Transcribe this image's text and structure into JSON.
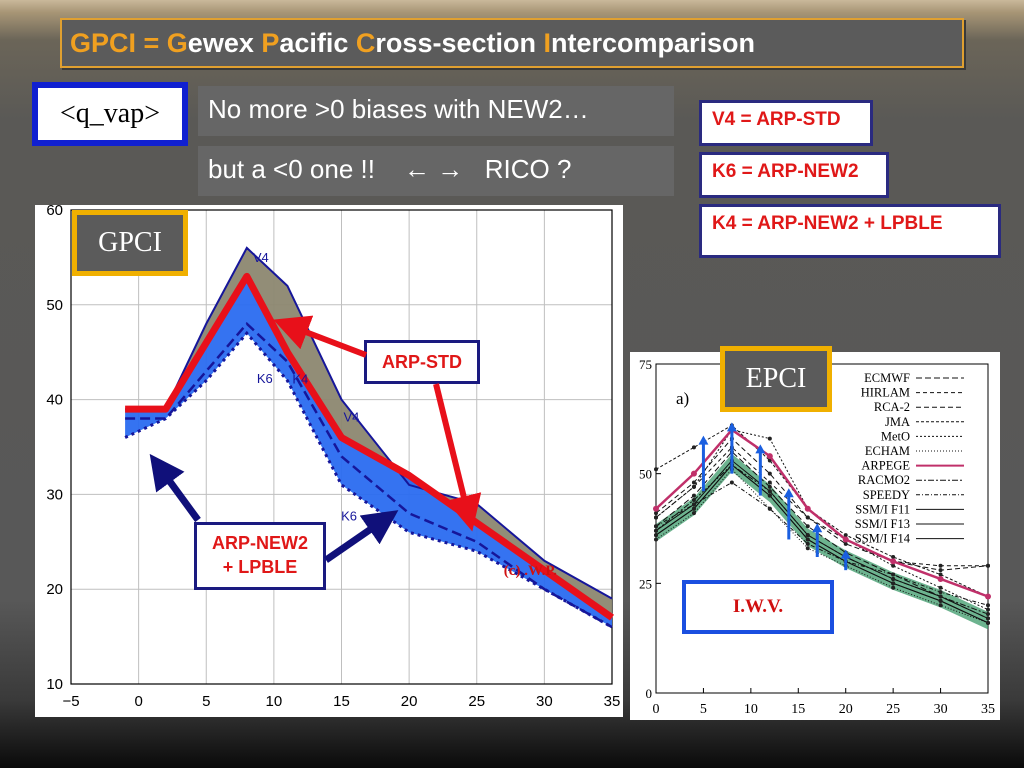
{
  "title": {
    "parts": [
      {
        "text": "GPCI = ",
        "hl": true
      },
      {
        "text": "G",
        "hl": true
      },
      {
        "text": "ewex ",
        "hl": false
      },
      {
        "text": "P",
        "hl": true
      },
      {
        "text": "acific ",
        "hl": false
      },
      {
        "text": "C",
        "hl": true
      },
      {
        "text": "ross-section ",
        "hl": false
      },
      {
        "text": "I",
        "hl": true
      },
      {
        "text": "ntercomparison",
        "hl": false
      }
    ]
  },
  "variable_label": "<q_vap>",
  "notes": {
    "line1": "No more  >0 biases with NEW2…",
    "line2_prefix": "but  a <0 one !!",
    "line2_arrows": "← →",
    "line2_suffix": "RICO ?"
  },
  "legend": {
    "v4": "V4 = ARP-STD",
    "k6": "K6 = ARP-NEW2",
    "k4": "K4 = ARP-NEW2 + LPBLE"
  },
  "gpci_plot": {
    "tag": "GPCI",
    "callout_std": "ARP-STD",
    "callout_new2_line1": "ARP-NEW2",
    "callout_new2_line2": "+ LPBLE",
    "region_label": "(c) .W.P.",
    "colors": {
      "std": "#e8101a",
      "new2": "#2a6cf0",
      "obs_fill": "#8c8770",
      "frame_line": "#16169a"
    }
  },
  "epci_plot": {
    "tag": "EPCI",
    "panel_label": "a)",
    "box_label": "I.W.V."
  },
  "chart_data": [
    {
      "type": "line",
      "title": "GPCI",
      "xlabel": "",
      "ylabel": "",
      "xlim": [
        -5,
        35
      ],
      "ylim": [
        10,
        60
      ],
      "xticks": [
        -5,
        0,
        5,
        10,
        15,
        20,
        25,
        30,
        35
      ],
      "yticks": [
        10,
        20,
        30,
        40,
        50,
        60
      ],
      "grid": true,
      "series": [
        {
          "name": "V4",
          "x": [
            -1,
            2,
            5,
            8,
            11,
            15,
            20,
            25,
            30,
            35
          ],
          "y": [
            39,
            39,
            48,
            56,
            52,
            40,
            31,
            29,
            23,
            19
          ]
        },
        {
          "name": "ARP-STD",
          "x": [
            -1,
            2,
            5,
            8,
            11,
            15,
            20,
            25,
            30,
            35
          ],
          "y": [
            39,
            39,
            46,
            53,
            45,
            36,
            32,
            27,
            22,
            17
          ]
        },
        {
          "name": "K6",
          "x": [
            -1,
            2,
            5,
            8,
            11,
            15,
            20,
            25,
            30,
            35
          ],
          "y": [
            36,
            38,
            42,
            47,
            42,
            31,
            26,
            24,
            20,
            16
          ]
        },
        {
          "name": "K4",
          "x": [
            -1,
            2,
            5,
            8,
            11,
            15,
            20,
            25,
            30,
            35
          ],
          "y": [
            38,
            38,
            43,
            48,
            44,
            34,
            28,
            25,
            20,
            16
          ]
        }
      ]
    },
    {
      "type": "line",
      "title": "EPCI",
      "xlabel": "",
      "ylabel": "",
      "xlim": [
        0,
        35
      ],
      "ylim": [
        0,
        75
      ],
      "xticks": [
        0,
        5,
        10,
        15,
        20,
        25,
        30,
        35
      ],
      "yticks": [
        0,
        25,
        50,
        75
      ],
      "grid": false,
      "legend_position": "top-right",
      "series": [
        {
          "name": "ECMWF",
          "x": [
            0,
            4,
            8,
            12,
            16,
            20,
            25,
            30,
            35
          ],
          "y": [
            38,
            45,
            55,
            47,
            38,
            32,
            27,
            22,
            17
          ]
        },
        {
          "name": "HIRLAM",
          "x": [
            0,
            4,
            8,
            12,
            16,
            20,
            25,
            30,
            35
          ],
          "y": [
            40,
            47,
            56,
            48,
            40,
            35,
            30,
            29,
            29
          ]
        },
        {
          "name": "RCA-2",
          "x": [
            0,
            4,
            8,
            12,
            16,
            20,
            25,
            30,
            35
          ],
          "y": [
            41,
            48,
            58,
            50,
            40,
            34,
            30,
            28,
            29
          ]
        },
        {
          "name": "JMA",
          "x": [
            0,
            4,
            8,
            12,
            16,
            20,
            25,
            30,
            35
          ],
          "y": [
            51,
            56,
            61,
            53,
            42,
            36,
            31,
            27,
            22
          ]
        },
        {
          "name": "MetO",
          "x": [
            0,
            4,
            8,
            12,
            16,
            20,
            25,
            30,
            35
          ],
          "y": [
            40,
            47,
            60,
            58,
            42,
            35,
            29,
            24,
            19
          ]
        },
        {
          "name": "ECHAM",
          "x": [
            0,
            4,
            8,
            12,
            16,
            20,
            25,
            30,
            35
          ],
          "y": [
            35,
            41,
            51,
            42,
            33,
            29,
            24,
            20,
            16
          ]
        },
        {
          "name": "ARPEGE",
          "x": [
            0,
            4,
            8,
            12,
            16,
            20,
            25,
            30,
            35
          ],
          "y": [
            42,
            50,
            60,
            54,
            42,
            35,
            30,
            26,
            22
          ]
        },
        {
          "name": "RACMO2",
          "x": [
            0,
            4,
            8,
            12,
            16,
            20,
            25,
            30,
            35
          ],
          "y": [
            37,
            44,
            52,
            46,
            36,
            31,
            26,
            22,
            18
          ]
        },
        {
          "name": "SPEEDY",
          "x": [
            0,
            4,
            8,
            12,
            16,
            20,
            25,
            30,
            35
          ],
          "y": [
            38,
            43,
            48,
            42,
            34,
            30,
            27,
            23,
            20
          ]
        },
        {
          "name": "SSM/I F11",
          "x": [
            0,
            4,
            8,
            12,
            16,
            20,
            25,
            30,
            35
          ],
          "y": [
            37,
            43,
            53,
            46,
            36,
            31,
            26,
            22,
            17
          ]
        },
        {
          "name": "SSM/I F13",
          "x": [
            0,
            4,
            8,
            12,
            16,
            20,
            25,
            30,
            35
          ],
          "y": [
            36,
            42,
            52,
            45,
            35,
            30,
            25,
            21,
            16
          ]
        },
        {
          "name": "SSM/I F14",
          "x": [
            0,
            4,
            8,
            12,
            16,
            20,
            25,
            30,
            35
          ],
          "y": [
            36,
            42,
            52,
            45,
            35,
            30,
            25,
            21,
            16
          ]
        }
      ]
    }
  ]
}
